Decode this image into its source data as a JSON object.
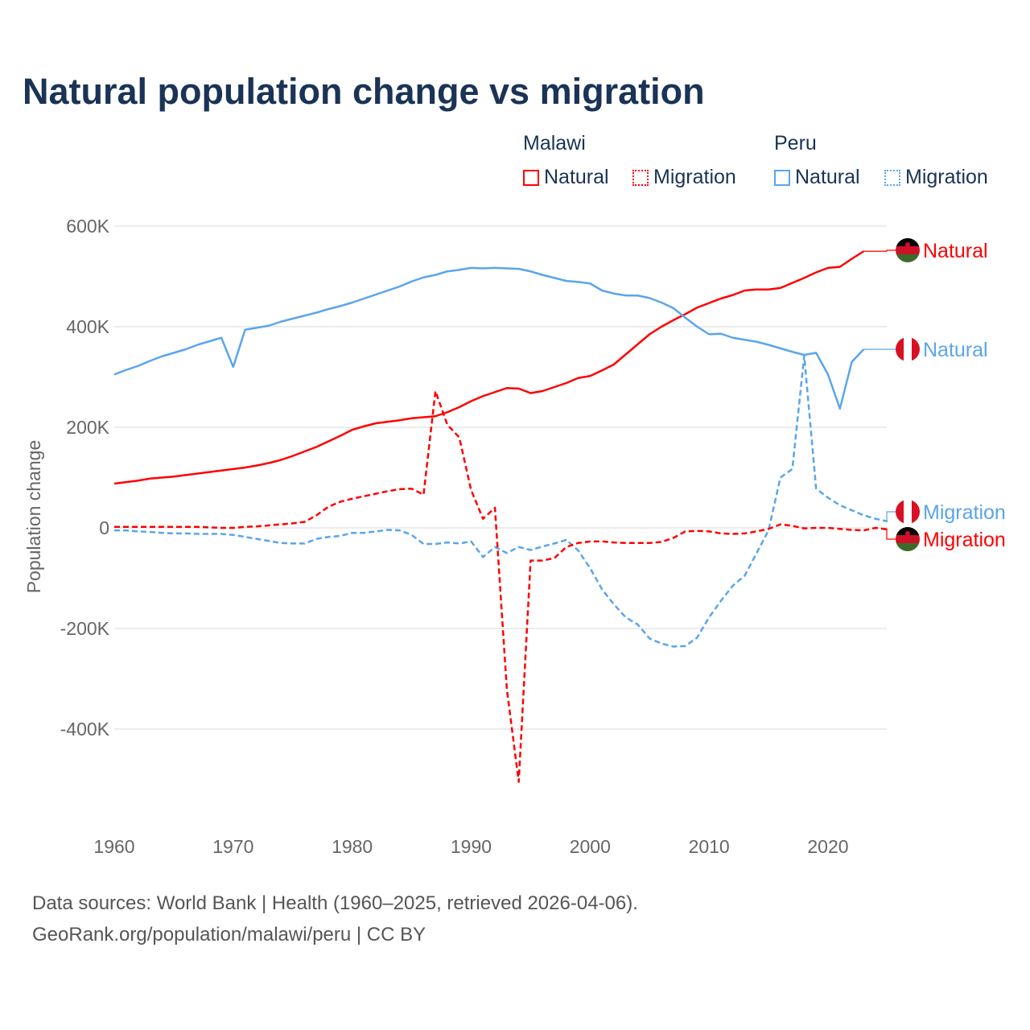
{
  "title": "Natural population change vs migration",
  "legend": {
    "groups": [
      {
        "name": "Malawi",
        "items": [
          "Natural",
          "Migration"
        ],
        "color": "#ff0000"
      },
      {
        "name": "Peru",
        "items": [
          "Natural",
          "Migration"
        ],
        "color": "#5aa5ec"
      }
    ]
  },
  "source": {
    "line1": "Data sources: World Bank | Health (1960–2025, retrieved 2026-04-06).",
    "line2": "GeoRank.org/population/malawi/peru | CC BY"
  },
  "chart_data": {
    "type": "line",
    "title": "Natural population change vs migration",
    "xlabel": "",
    "ylabel": "Population change",
    "xlim": [
      1960,
      2025
    ],
    "ylim": [
      -500000,
      600000
    ],
    "x_ticks": [
      "1960",
      "1970",
      "1980",
      "1990",
      "2000",
      "2010",
      "2020"
    ],
    "y_ticks": [
      {
        "v": 600000,
        "label": "600K"
      },
      {
        "v": 400000,
        "label": "400K"
      },
      {
        "v": 200000,
        "label": "200K"
      },
      {
        "v": 0,
        "label": "0"
      },
      {
        "v": -200000,
        "label": "-200K"
      },
      {
        "v": -400000,
        "label": "-400K"
      }
    ],
    "grid": true,
    "series": [
      {
        "name": "Malawi Natural",
        "end_label": "Natural",
        "country": "Malawi",
        "color": "#ff0000",
        "dash": false,
        "start": 1960,
        "values_k": [
          88,
          91,
          94,
          98,
          100,
          102,
          105,
          108,
          111,
          114,
          117,
          120,
          124,
          129,
          135,
          143,
          152,
          161,
          172,
          183,
          195,
          202,
          208,
          211,
          214,
          218,
          220,
          222,
          230,
          240,
          252,
          262,
          270,
          278,
          277,
          268,
          272,
          280,
          288,
          298,
          302,
          313,
          325,
          345,
          365,
          385,
          400,
          413,
          425,
          438,
          447,
          456,
          463,
          472,
          474,
          474,
          477,
          487,
          497,
          508,
          517,
          519,
          535,
          550
        ]
      },
      {
        "name": "Peru Natural",
        "end_label": "Natural",
        "country": "Peru",
        "color": "#5aa5ec",
        "dash": false,
        "start": 1960,
        "values_k": [
          305,
          314,
          322,
          332,
          341,
          348,
          355,
          364,
          371,
          378,
          320,
          394,
          398,
          402,
          410,
          416,
          422,
          428,
          435,
          441,
          448,
          456,
          464,
          472,
          480,
          490,
          498,
          503,
          510,
          513,
          517,
          516,
          517,
          516,
          515,
          510,
          503,
          497,
          491,
          489,
          486,
          472,
          466,
          462,
          462,
          457,
          448,
          437,
          418,
          400,
          385,
          386,
          378,
          374,
          370,
          364,
          357,
          350,
          344,
          348,
          305,
          237,
          330,
          355
        ]
      },
      {
        "name": "Peru Migration",
        "end_label": "Migration",
        "country": "Peru",
        "color": "#5aa5ec",
        "dash": true,
        "start": 1960,
        "values_k": [
          -5,
          -5,
          -7,
          -8,
          -10,
          -11,
          -11,
          -12,
          -12,
          -12,
          -14,
          -18,
          -22,
          -26,
          -30,
          -31,
          -31,
          -22,
          -18,
          -16,
          -10,
          -10,
          -7,
          -4,
          -5,
          -14,
          -32,
          -32,
          -29,
          -31,
          -27,
          -58,
          -38,
          -50,
          -38,
          -44,
          -37,
          -31,
          -24,
          -45,
          -80,
          -122,
          -152,
          -178,
          -192,
          -220,
          -230,
          -236,
          -235,
          -218,
          -178,
          -145,
          -115,
          -95,
          -50,
          -5,
          100,
          117,
          342,
          78,
          60,
          45,
          35,
          25,
          18,
          13
        ]
      },
      {
        "name": "Malawi Migration",
        "end_label": "Migration",
        "country": "Malawi",
        "color": "#ff0000",
        "dash": true,
        "start": 1960,
        "values_k": [
          2,
          2,
          2,
          2,
          2,
          2,
          2,
          2,
          1,
          0,
          0,
          2,
          3,
          5,
          7,
          9,
          12,
          25,
          42,
          52,
          58,
          63,
          68,
          73,
          77,
          78,
          66,
          272,
          205,
          180,
          75,
          18,
          40,
          -320,
          -505,
          -65,
          -65,
          -60,
          -38,
          -30,
          -27,
          -27,
          -29,
          -30,
          -30,
          -30,
          -28,
          -20,
          -7,
          -6,
          -7,
          -11,
          -12,
          -11,
          -7,
          -2,
          7,
          4,
          -1,
          0,
          0,
          -2,
          -4,
          -5,
          0,
          -3
        ]
      }
    ]
  }
}
